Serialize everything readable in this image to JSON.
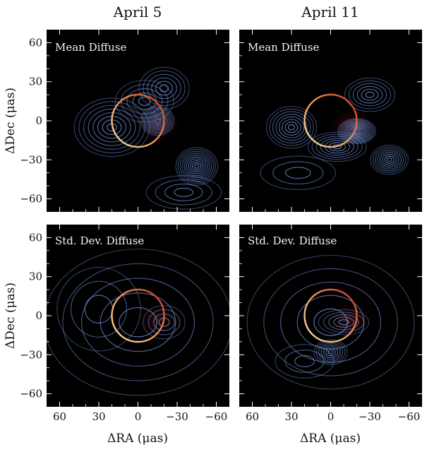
{
  "columns": [
    "April 5",
    "April 11"
  ],
  "axes": {
    "xlabel": "ΔRA (μas)",
    "ylabel": "ΔDec (μas)",
    "xlim": [
      70,
      -70
    ],
    "ylim": [
      -70,
      70
    ],
    "xticks": [
      60,
      30,
      0,
      -30,
      -60
    ],
    "xtick_labels": [
      "60",
      "30",
      "0",
      "−30",
      "−60"
    ],
    "yticks": [
      60,
      30,
      0,
      -30,
      -60
    ],
    "ytick_labels": [
      "60",
      "30",
      "0",
      "−30",
      "−60"
    ]
  },
  "colors": {
    "panel_background": "#000000",
    "contour": "#6f8fd6",
    "ring_outer": "#d0402a",
    "ring_inner": "#ffe0a0",
    "tick": "#ffffff"
  },
  "chart_data": [
    {
      "type": "contour",
      "title": "Mean Diffuse",
      "column": "April 5",
      "row": 0,
      "ring": {
        "center": [
          0,
          0
        ],
        "radius": 20
      },
      "blobs": [
        {
          "x": 20,
          "y": -5,
          "sx": 18,
          "sy": 14,
          "w": 1.0
        },
        {
          "x": -15,
          "y": 0,
          "sx": 8,
          "sy": 7,
          "w": 1.3
        },
        {
          "x": -5,
          "y": 15,
          "sx": 14,
          "sy": 10,
          "w": 0.6
        },
        {
          "x": -20,
          "y": 25,
          "sx": 12,
          "sy": 10,
          "w": 0.8
        },
        {
          "x": -45,
          "y": -35,
          "sx": 10,
          "sy": 9,
          "w": 1.2
        },
        {
          "x": -35,
          "y": -55,
          "sx": 18,
          "sy": 8,
          "w": 0.5
        }
      ]
    },
    {
      "type": "contour",
      "title": "Mean Diffuse",
      "column": "April 11",
      "row": 0,
      "ring": {
        "center": [
          0,
          0
        ],
        "radius": 20
      },
      "blobs": [
        {
          "x": 30,
          "y": -5,
          "sx": 12,
          "sy": 10,
          "w": 1.0
        },
        {
          "x": -20,
          "y": -8,
          "sx": 9,
          "sy": 6,
          "w": 1.6
        },
        {
          "x": -5,
          "y": -20,
          "sx": 14,
          "sy": 7,
          "w": 0.9
        },
        {
          "x": -30,
          "y": 20,
          "sx": 12,
          "sy": 8,
          "w": 0.8
        },
        {
          "x": -45,
          "y": -30,
          "sx": 9,
          "sy": 7,
          "w": 1.0
        },
        {
          "x": 25,
          "y": -40,
          "sx": 18,
          "sy": 8,
          "w": 0.4
        }
      ]
    },
    {
      "type": "contour",
      "title": "Std. Dev. Diffuse",
      "column": "April 5",
      "row": 1,
      "ring": {
        "center": [
          0,
          0
        ],
        "radius": 20
      },
      "blobs": [
        {
          "x": 0,
          "y": -5,
          "sx": 45,
          "sy": 35,
          "w": 0.6
        },
        {
          "x": -20,
          "y": -5,
          "sx": 10,
          "sy": 8,
          "w": 0.5
        },
        {
          "x": 30,
          "y": 5,
          "sx": 20,
          "sy": 20,
          "w": 0.3
        }
      ]
    },
    {
      "type": "contour",
      "title": "Std. Dev. Diffuse",
      "column": "April 11",
      "row": 1,
      "ring": {
        "center": [
          0,
          0
        ],
        "radius": 20
      },
      "blobs": [
        {
          "x": 0,
          "y": -5,
          "sx": 40,
          "sy": 32,
          "w": 0.6
        },
        {
          "x": 0,
          "y": -28,
          "sx": 8,
          "sy": 6,
          "w": 0.9
        },
        {
          "x": -10,
          "y": -5,
          "sx": 12,
          "sy": 6,
          "w": 0.6
        },
        {
          "x": 20,
          "y": -35,
          "sx": 14,
          "sy": 8,
          "w": 0.4
        }
      ]
    }
  ]
}
